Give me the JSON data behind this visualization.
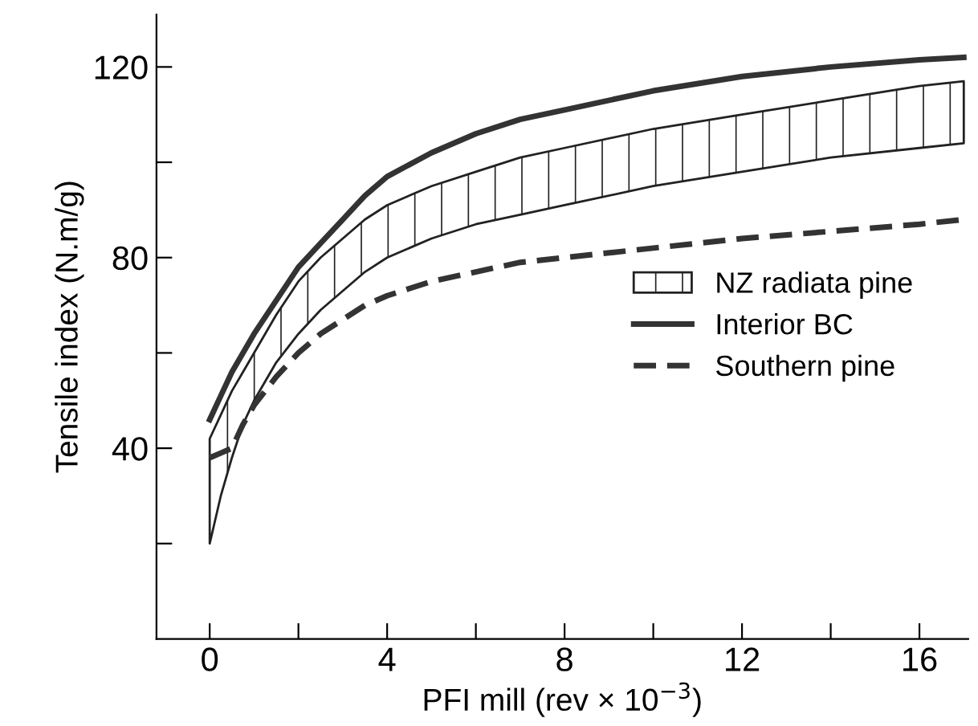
{
  "chart_data": {
    "type": "line",
    "xlabel": "PFI mill (rev × 10$^{−3}$)",
    "ylabel": "Tensile index (N.m/g)",
    "x": [
      0,
      0.25,
      0.5,
      0.75,
      1,
      1.5,
      2,
      2.5,
      3,
      3.5,
      4,
      5,
      6,
      7,
      8,
      10,
      12,
      14,
      16,
      17
    ],
    "series": [
      {
        "name": "NZ radiata pine",
        "type": "line",
        "color": "#222222",
        "values": [
          null,
          null,
          null,
          null,
          null,
          null,
          null,
          null,
          null,
          null,
          null,
          null,
          null,
          null,
          null,
          null,
          null,
          null,
          null,
          null
        ],
        "upper": [
          42,
          47,
          52,
          56,
          60,
          68,
          75,
          80,
          84,
          88,
          91,
          95,
          98,
          101,
          103,
          107,
          110,
          113,
          116,
          117
        ],
        "lower": [
          20,
          30,
          38,
          45,
          50,
          58,
          64,
          69,
          73,
          77,
          80,
          84,
          87,
          89,
          91,
          95,
          98,
          101,
          103,
          104
        ]
      },
      {
        "name": "Interior BC",
        "color": "#333333",
        "line_style": "solid",
        "values": [
          46,
          51,
          56,
          60,
          64,
          71,
          78,
          83,
          88,
          93,
          97,
          102,
          106,
          109,
          111,
          115,
          118,
          120,
          121.5,
          122
        ]
      },
      {
        "name": "Southern pine",
        "color": "#333333",
        "line_style": "dashed",
        "values": [
          38,
          39,
          40,
          45,
          49,
          55,
          60,
          64,
          67,
          70,
          72,
          75,
          77,
          79,
          80,
          82,
          84,
          85.5,
          87,
          88
        ]
      }
    ],
    "xlim": [
      -1.2,
      17.1
    ],
    "ylim": [
      0,
      131
    ],
    "xticks": [
      0,
      {
        "value": 2,
        "label": null
      },
      4,
      {
        "value": 6,
        "label": null
      },
      8,
      {
        "value": 10,
        "label": null
      },
      12,
      {
        "value": 14,
        "label": null
      },
      16
    ],
    "yticks": [
      {
        "value": 20,
        "label": null
      },
      40,
      {
        "value": 60,
        "label": null
      },
      80,
      {
        "value": 100,
        "label": null
      },
      120
    ],
    "legend": "right",
    "grid": false
  }
}
